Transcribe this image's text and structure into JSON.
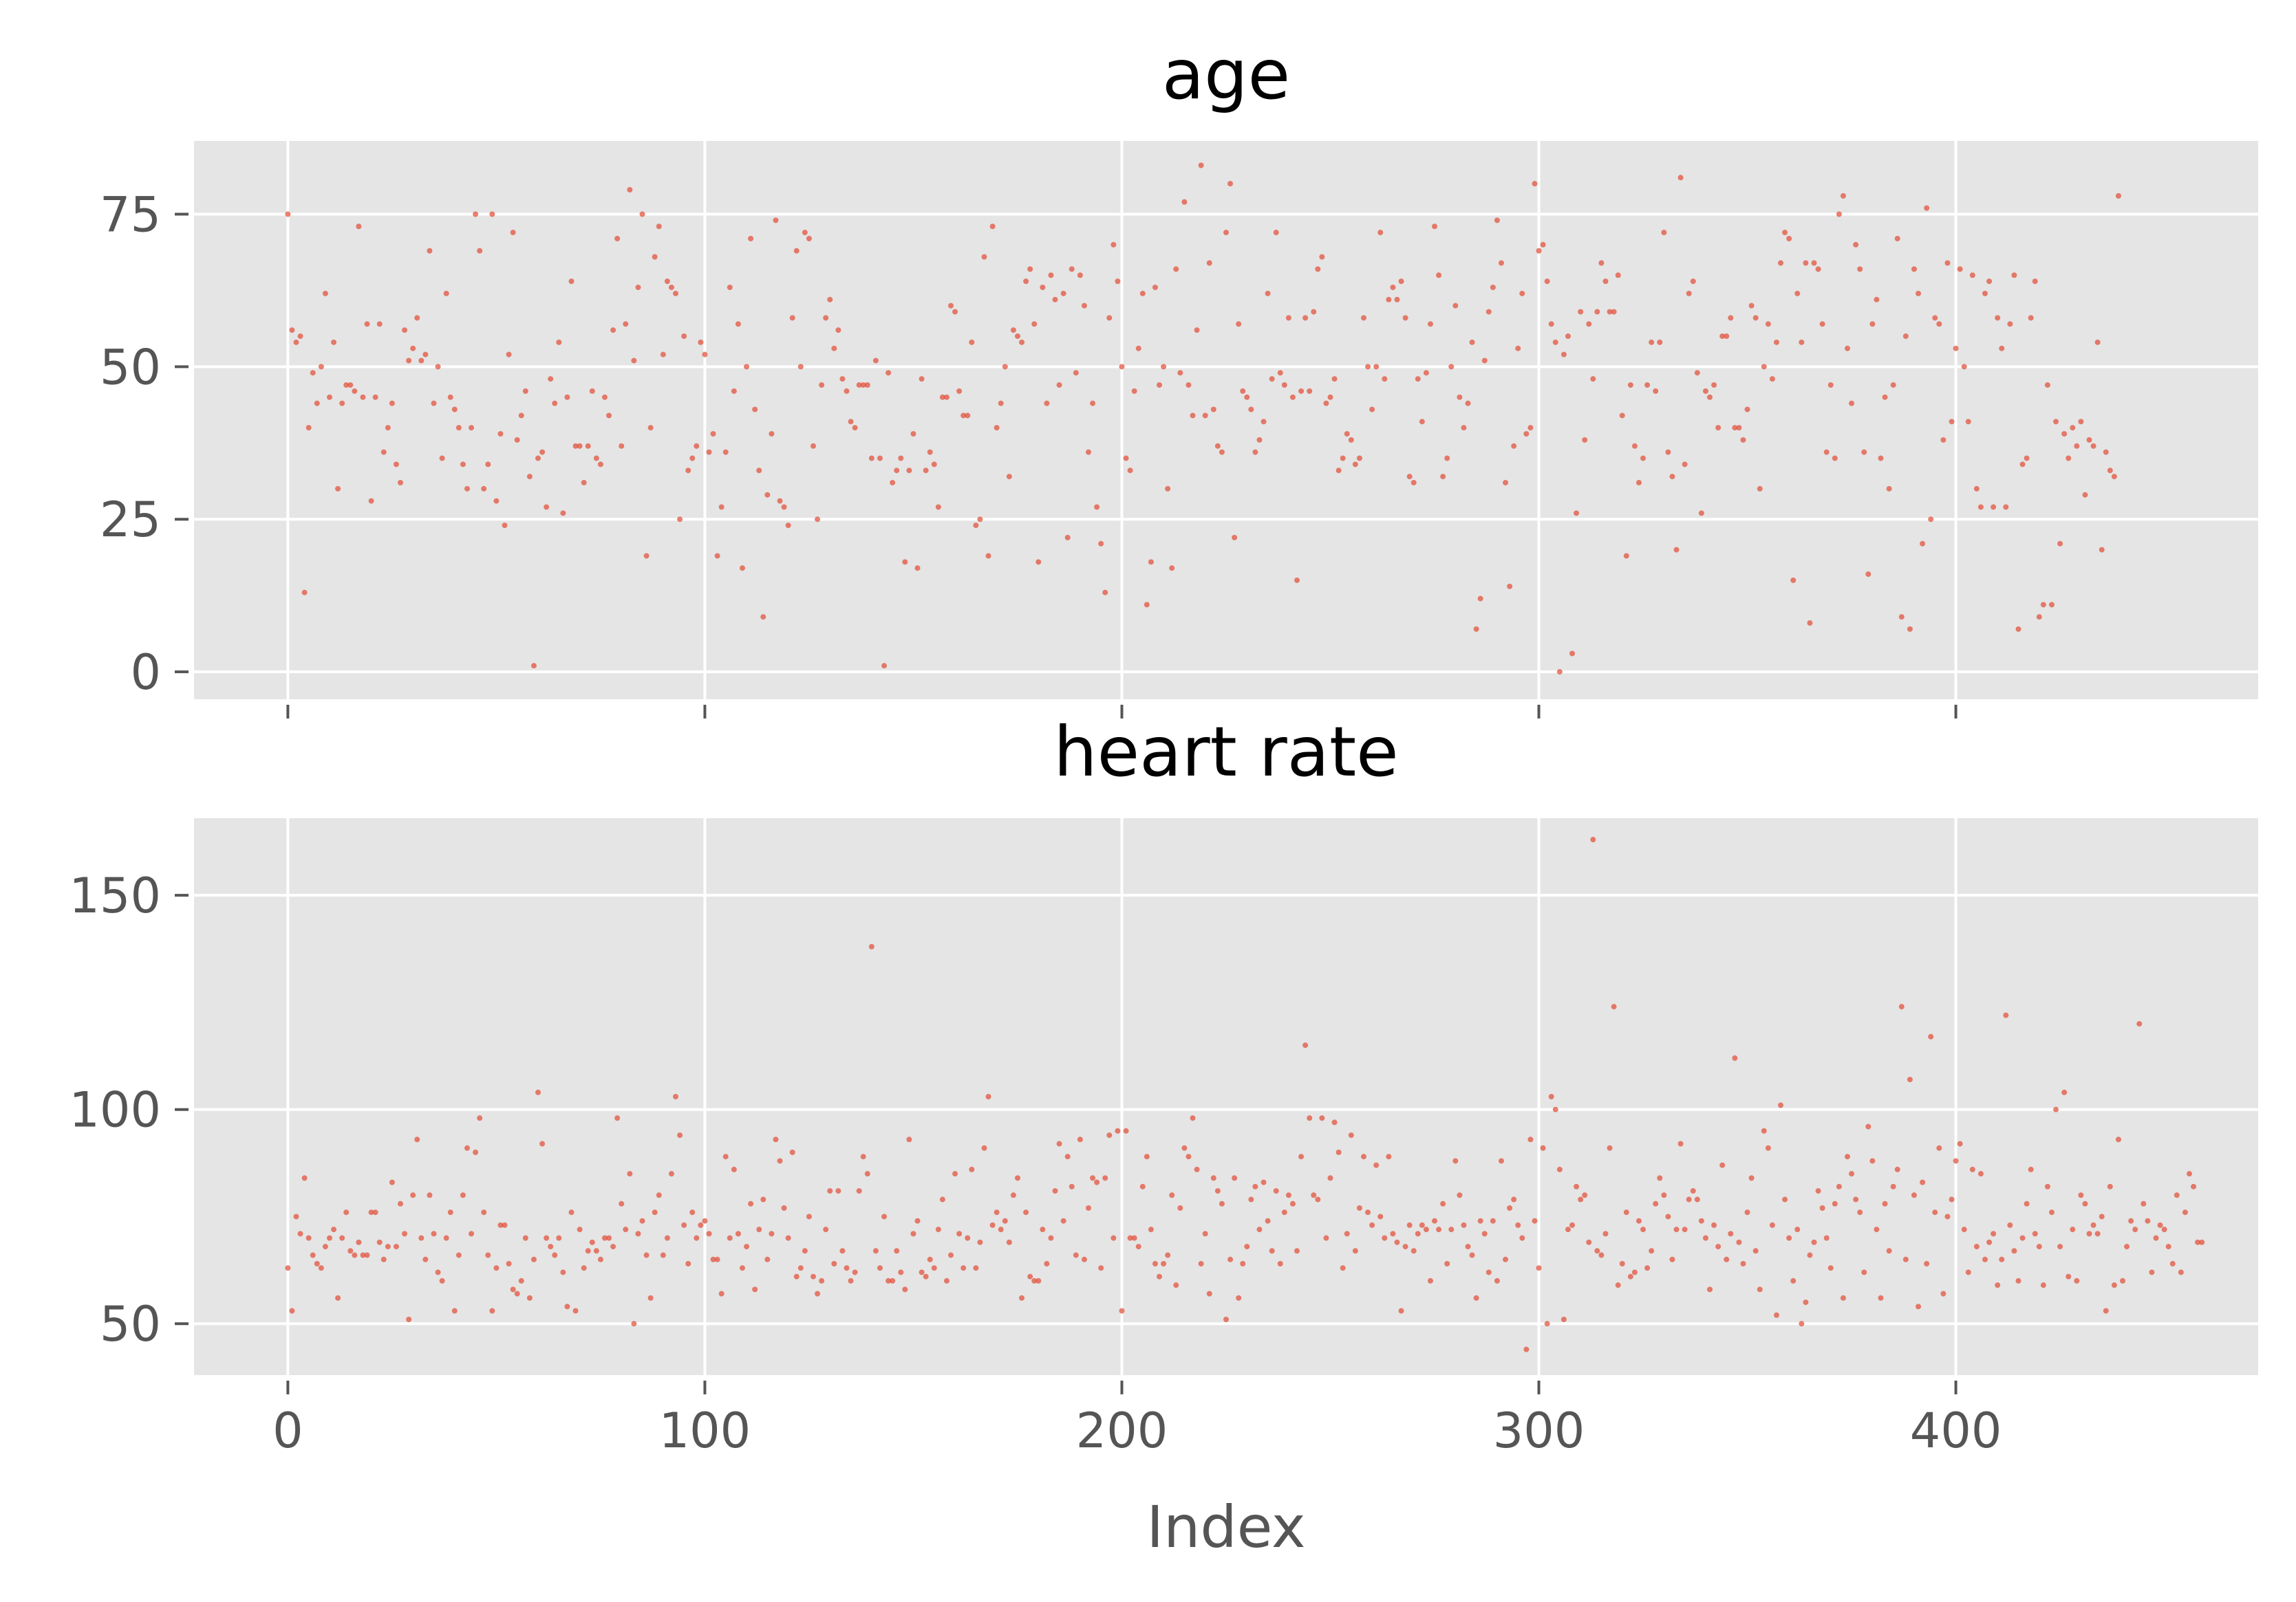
{
  "chart_data": [
    {
      "type": "scatter",
      "title": "age",
      "xlabel": "",
      "ylabel": "",
      "xlim": [
        -22.5,
        472.5
      ],
      "ylim": [
        -4.5,
        87
      ],
      "xticks": [
        0,
        100,
        200,
        300,
        400
      ],
      "yticks": [
        0,
        25,
        50,
        75
      ],
      "ytick_labels": [
        "0",
        "25",
        "50",
        "75"
      ],
      "xtick_labels_visible": false,
      "grid": true,
      "color": "#e24a33",
      "y": [
        75,
        56,
        54,
        55,
        13,
        40,
        49,
        44,
        50,
        62,
        45,
        54,
        30,
        44,
        47,
        47,
        46,
        73,
        45,
        57,
        28,
        45,
        57,
        36,
        40,
        44,
        34,
        31,
        56,
        51,
        53,
        58,
        51,
        52,
        69,
        44,
        50,
        35,
        62,
        45,
        43,
        40,
        34,
        30,
        40,
        75,
        69,
        30,
        34,
        75,
        28,
        39,
        24,
        52,
        72,
        38,
        42,
        46,
        32,
        1,
        35,
        36,
        27,
        48,
        44,
        54,
        26,
        45,
        64,
        37,
        37,
        31,
        37,
        46,
        35,
        34,
        45,
        42,
        56,
        71,
        37,
        57,
        79,
        51,
        63,
        75,
        19,
        40,
        68,
        73,
        52,
        64,
        63,
        62,
        25,
        55,
        33,
        35,
        37,
        54,
        52,
        36,
        39,
        19,
        27,
        36,
        63,
        46,
        57,
        17,
        50,
        71,
        43,
        33,
        9,
        29,
        39,
        74,
        28,
        27,
        24,
        58,
        69,
        50,
        72,
        71,
        37,
        25,
        47,
        58,
        61,
        53,
        56,
        48,
        46,
        41,
        40,
        47,
        47,
        47,
        35,
        51,
        35,
        1,
        49,
        31,
        33,
        35,
        18,
        33,
        39,
        17,
        48,
        33,
        36,
        34,
        27,
        45,
        45,
        60,
        59,
        46,
        42,
        42,
        54,
        24,
        25,
        68,
        19,
        73,
        40,
        44,
        50,
        32,
        56,
        55,
        54,
        64,
        66,
        57,
        18,
        63,
        44,
        65,
        61,
        47,
        62,
        22,
        66,
        49,
        65,
        60,
        36,
        44,
        27,
        21,
        13,
        58,
        70,
        64,
        50,
        35,
        33,
        46,
        53,
        62,
        11,
        18,
        63,
        47,
        50,
        30,
        17,
        66,
        49,
        77,
        47,
        42,
        56,
        83,
        42,
        67,
        43,
        37,
        36,
        72,
        80,
        22,
        57,
        46,
        45,
        43,
        36,
        38,
        41,
        62,
        48,
        72,
        49,
        47,
        58,
        45,
        15,
        46,
        58,
        46,
        59,
        66,
        68,
        44,
        45,
        48,
        33,
        35,
        39,
        38,
        34,
        35,
        58,
        50,
        43,
        50,
        72,
        48,
        61,
        63,
        61,
        64,
        58,
        32,
        31,
        48,
        41,
        49,
        57,
        73,
        65,
        32,
        35,
        50,
        60,
        45,
        40,
        44,
        54,
        7,
        12,
        51,
        59,
        63,
        74,
        67,
        31,
        14,
        37,
        53,
        62,
        39,
        40,
        80,
        69,
        70,
        64,
        57,
        54,
        0,
        52,
        55,
        3,
        26,
        59,
        38,
        57,
        48,
        59,
        67,
        64,
        59,
        59,
        65,
        42,
        19,
        47,
        37,
        31,
        35,
        47,
        54,
        46,
        54,
        72,
        36,
        32,
        20,
        81,
        34,
        62,
        64,
        49,
        26,
        46,
        45,
        47,
        40,
        55,
        55,
        58,
        40,
        40,
        38,
        43,
        60,
        58,
        30,
        50,
        57,
        48,
        54,
        67,
        72,
        71,
        15,
        62,
        54,
        67,
        8,
        67,
        66,
        57,
        36,
        47,
        35,
        75,
        78,
        53,
        44,
        70,
        66,
        36,
        16,
        57,
        61,
        35,
        45,
        30,
        47,
        71,
        9,
        55,
        7,
        66,
        62,
        21,
        76,
        25,
        58,
        57,
        38,
        67,
        41,
        53,
        66,
        50,
        41,
        65,
        30,
        27,
        62,
        64,
        27,
        58,
        53,
        27,
        57,
        65,
        7,
        34,
        35,
        58,
        64,
        9,
        11,
        47,
        11,
        41,
        21,
        39,
        35,
        40,
        37,
        41,
        29,
        38,
        37,
        54,
        20,
        36,
        33,
        32,
        78
      ]
    },
    {
      "type": "scatter",
      "title": "heart rate",
      "xlabel": "Index",
      "ylabel": "",
      "xlim": [
        -22.5,
        472.5
      ],
      "ylim": [
        38,
        168
      ],
      "xticks": [
        0,
        100,
        200,
        300,
        400
      ],
      "xtick_labels": [
        "0",
        "100",
        "200",
        "300",
        "400"
      ],
      "yticks": [
        50,
        100,
        150
      ],
      "ytick_labels": [
        "50",
        "100",
        "150"
      ],
      "grid": true,
      "color": "#e24a33",
      "y": [
        63,
        53,
        75,
        71,
        84,
        70,
        66,
        64,
        63,
        68,
        70,
        72,
        56,
        70,
        76,
        67,
        66,
        69,
        66,
        66,
        76,
        76,
        69,
        65,
        68,
        83,
        68,
        78,
        71,
        51,
        80,
        93,
        70,
        65,
        80,
        71,
        62,
        60,
        70,
        76,
        53,
        66,
        80,
        91,
        71,
        90,
        98,
        76,
        66,
        53,
        63,
        73,
        73,
        64,
        58,
        57,
        60,
        70,
        56,
        65,
        104,
        92,
        70,
        68,
        66,
        70,
        62,
        54,
        76,
        53,
        72,
        63,
        67,
        69,
        67,
        65,
        70,
        70,
        68,
        98,
        78,
        72,
        85,
        50,
        71,
        74,
        66,
        56,
        76,
        80,
        66,
        70,
        85,
        103,
        94,
        73,
        64,
        76,
        70,
        73,
        74,
        71,
        65,
        65,
        57,
        89,
        70,
        86,
        71,
        63,
        68,
        78,
        58,
        72,
        79,
        65,
        71,
        93,
        88,
        77,
        70,
        90,
        61,
        63,
        67,
        75,
        61,
        57,
        60,
        72,
        81,
        64,
        81,
        67,
        63,
        60,
        62,
        81,
        89,
        85,
        138,
        67,
        63,
        75,
        60,
        60,
        67,
        62,
        58,
        93,
        71,
        74,
        62,
        61,
        65,
        63,
        72,
        79,
        60,
        66,
        85,
        71,
        63,
        70,
        86,
        63,
        69,
        91,
        103,
        73,
        76,
        72,
        74,
        69,
        80,
        84,
        56,
        76,
        61,
        60,
        60,
        72,
        64,
        70,
        81,
        92,
        74,
        89,
        82,
        66,
        93,
        65,
        77,
        84,
        83,
        63,
        84,
        94,
        70,
        95,
        53,
        95,
        70,
        70,
        68,
        82,
        89,
        72,
        64,
        61,
        64,
        66,
        80,
        59,
        77,
        91,
        89,
        98,
        86,
        64,
        71,
        57,
        84,
        81,
        78,
        51,
        65,
        84,
        56,
        64,
        68,
        79,
        82,
        72,
        83,
        74,
        67,
        81,
        64,
        76,
        80,
        78,
        67,
        89,
        115,
        98,
        80,
        79,
        98,
        70,
        84,
        97,
        90,
        63,
        71,
        94,
        67,
        77,
        89,
        76,
        73,
        87,
        75,
        70,
        89,
        71,
        69,
        53,
        68,
        73,
        67,
        71,
        73,
        72,
        60,
        74,
        72,
        78,
        64,
        72,
        88,
        80,
        73,
        68,
        66,
        56,
        74,
        71,
        62,
        74,
        60,
        88,
        65,
        77,
        79,
        73,
        70,
        44,
        93,
        74,
        63,
        91,
        50,
        103,
        100,
        86,
        51,
        72,
        73,
        82,
        79,
        80,
        69,
        163,
        67,
        66,
        71,
        91,
        124,
        59,
        64,
        76,
        61,
        62,
        74,
        72,
        63,
        67,
        78,
        84,
        80,
        75,
        65,
        72,
        92,
        72,
        79,
        81,
        79,
        74,
        70,
        58,
        73,
        68,
        87,
        65,
        71,
        112,
        69,
        64,
        76,
        84,
        67,
        58,
        95,
        91,
        73,
        52,
        101,
        79,
        70,
        60,
        72,
        50,
        55,
        66,
        69,
        81,
        77,
        70,
        63,
        78,
        82,
        56,
        89,
        85,
        79,
        76,
        62,
        96,
        88,
        72,
        56,
        78,
        67,
        82,
        86,
        124,
        65,
        107,
        80,
        54,
        83,
        64,
        117,
        76,
        91,
        57,
        75,
        79,
        88,
        92,
        72,
        62,
        86,
        68,
        85,
        65,
        69,
        71,
        59,
        65,
        122,
        73,
        67,
        60,
        70,
        78,
        86,
        71,
        68,
        59,
        82,
        76,
        100,
        68,
        104,
        61,
        72,
        60,
        80,
        78,
        71,
        73,
        71,
        75,
        53,
        82,
        59,
        93,
        60,
        68,
        74,
        72,
        120,
        78,
        74,
        62,
        70,
        73,
        72,
        68,
        64,
        80,
        62,
        76,
        85,
        82,
        69,
        69
      ]
    }
  ]
}
